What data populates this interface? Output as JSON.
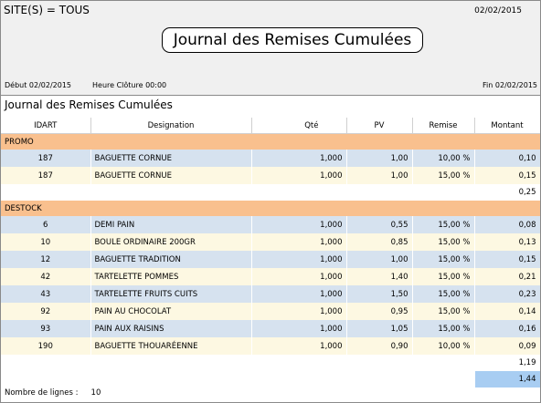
{
  "header": {
    "site_filter": "SITE(S) = TOUS",
    "print_date": "02/02/2015",
    "title": "Journal des Remises Cumulées",
    "start_label": "Début 02/02/2015",
    "closing_label": "Heure Clôture 00:00",
    "end_label": "Fin 02/02/2015"
  },
  "report_title": "Journal des Remises Cumulées",
  "columns": {
    "idart": "IDART",
    "designation": "Designation",
    "qty": "Qté",
    "pv": "PV",
    "remise": "Remise",
    "montant": "Montant"
  },
  "groups": [
    {
      "name": "PROMO",
      "rows": [
        {
          "idart": "187",
          "designation": "BAGUETTE CORNUE",
          "qty": "1,000",
          "pv": "1,00",
          "remise": "10,00 %",
          "montant": "0,10"
        },
        {
          "idart": "187",
          "designation": "BAGUETTE CORNUE",
          "qty": "1,000",
          "pv": "1,00",
          "remise": "15,00 %",
          "montant": "0,15"
        }
      ],
      "subtotal": "0,25"
    },
    {
      "name": "DESTOCK",
      "rows": [
        {
          "idart": "6",
          "designation": "DEMI PAIN",
          "qty": "1,000",
          "pv": "0,55",
          "remise": "15,00 %",
          "montant": "0,08"
        },
        {
          "idart": "10",
          "designation": "BOULE ORDINAIRE 200GR",
          "qty": "1,000",
          "pv": "0,85",
          "remise": "15,00 %",
          "montant": "0,13"
        },
        {
          "idart": "12",
          "designation": "BAGUETTE TRADITION",
          "qty": "1,000",
          "pv": "1,00",
          "remise": "15,00 %",
          "montant": "0,15"
        },
        {
          "idart": "42",
          "designation": "TARTELETTE POMMES",
          "qty": "1,000",
          "pv": "1,40",
          "remise": "15,00 %",
          "montant": "0,21"
        },
        {
          "idart": "43",
          "designation": "TARTELETTE FRUITS CUITS",
          "qty": "1,000",
          "pv": "1,50",
          "remise": "15,00 %",
          "montant": "0,23"
        },
        {
          "idart": "92",
          "designation": "PAIN AU CHOCOLAT",
          "qty": "1,000",
          "pv": "0,95",
          "remise": "15,00 %",
          "montant": "0,14"
        },
        {
          "idart": "93",
          "designation": "PAIN AUX RAISINS",
          "qty": "1,000",
          "pv": "1,05",
          "remise": "15,00 %",
          "montant": "0,16"
        },
        {
          "idart": "190",
          "designation": "BAGUETTE THOUARÉENNE",
          "qty": "1,000",
          "pv": "0,90",
          "remise": "10,00 %",
          "montant": "0,09"
        }
      ],
      "subtotal": "1,19"
    }
  ],
  "grand_total": "1,44",
  "footer": {
    "lines_label": "Nombre de lignes :",
    "lines_count": "10"
  },
  "colors": {
    "group_band": "#f9c08e",
    "row_blue": "#d6e2ef",
    "row_cream": "#fdf8e2",
    "grand_total_bg": "#a8cdf2"
  }
}
